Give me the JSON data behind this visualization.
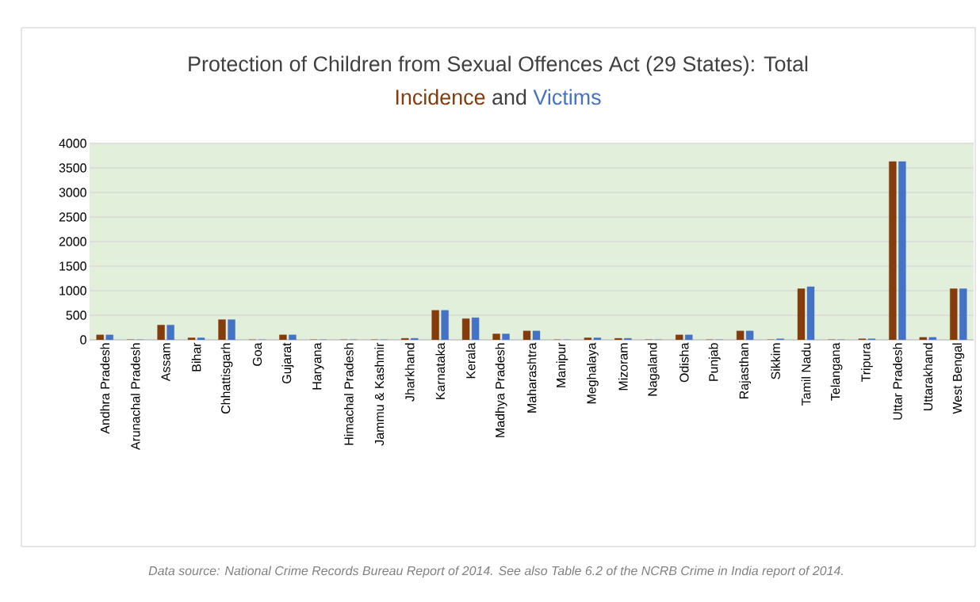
{
  "chart_data": {
    "type": "bar",
    "title": "Protection of Children from Sexual Offences Act (29 States): Total",
    "categories": [
      "Andhra Pradesh",
      "Arunachal Pradesh",
      "Assam",
      "Bihar",
      "Chhattisgarh",
      "Goa",
      "Gujarat",
      "Haryana",
      "Himachal Pradesh",
      "Jammu & Kashmir",
      "Jharkhand",
      "Karnataka",
      "Kerala",
      "Madhya Pradesh",
      "Maharashtra",
      "Manipur",
      "Meghalaya",
      "Mizoram",
      "Nagaland",
      "Odisha",
      "Punjab",
      "Rajasthan",
      "Sikkim",
      "Tamil Nadu",
      "Telangana",
      "Tripura",
      "Uttar Pradesh",
      "Uttarakhand",
      "West Bengal"
    ],
    "series": [
      {
        "name": "Incidence",
        "color": "#843c0c",
        "values": [
          100,
          0,
          300,
          40,
          410,
          0,
          100,
          0,
          0,
          0,
          30,
          600,
          430,
          120,
          180,
          0,
          40,
          30,
          0,
          100,
          0,
          180,
          0,
          1040,
          0,
          20,
          3630,
          50,
          1040
        ]
      },
      {
        "name": "Victims",
        "color": "#4472c4",
        "values": [
          100,
          0,
          300,
          40,
          410,
          0,
          100,
          0,
          0,
          0,
          30,
          600,
          450,
          120,
          180,
          0,
          40,
          30,
          0,
          100,
          0,
          180,
          20,
          1080,
          0,
          20,
          3630,
          50,
          1040
        ]
      }
    ],
    "ylim": [
      0,
      4000
    ],
    "yticks": [
      0,
      500,
      1000,
      1500,
      2000,
      2500,
      3000,
      3500,
      4000
    ],
    "grid": "y",
    "legend": "top",
    "annotations": [
      "and",
      "Data source: National Crime Records Bureau Report of 2014. See also Table 6.2 of the NCRB Crime in India report of 2014."
    ]
  }
}
